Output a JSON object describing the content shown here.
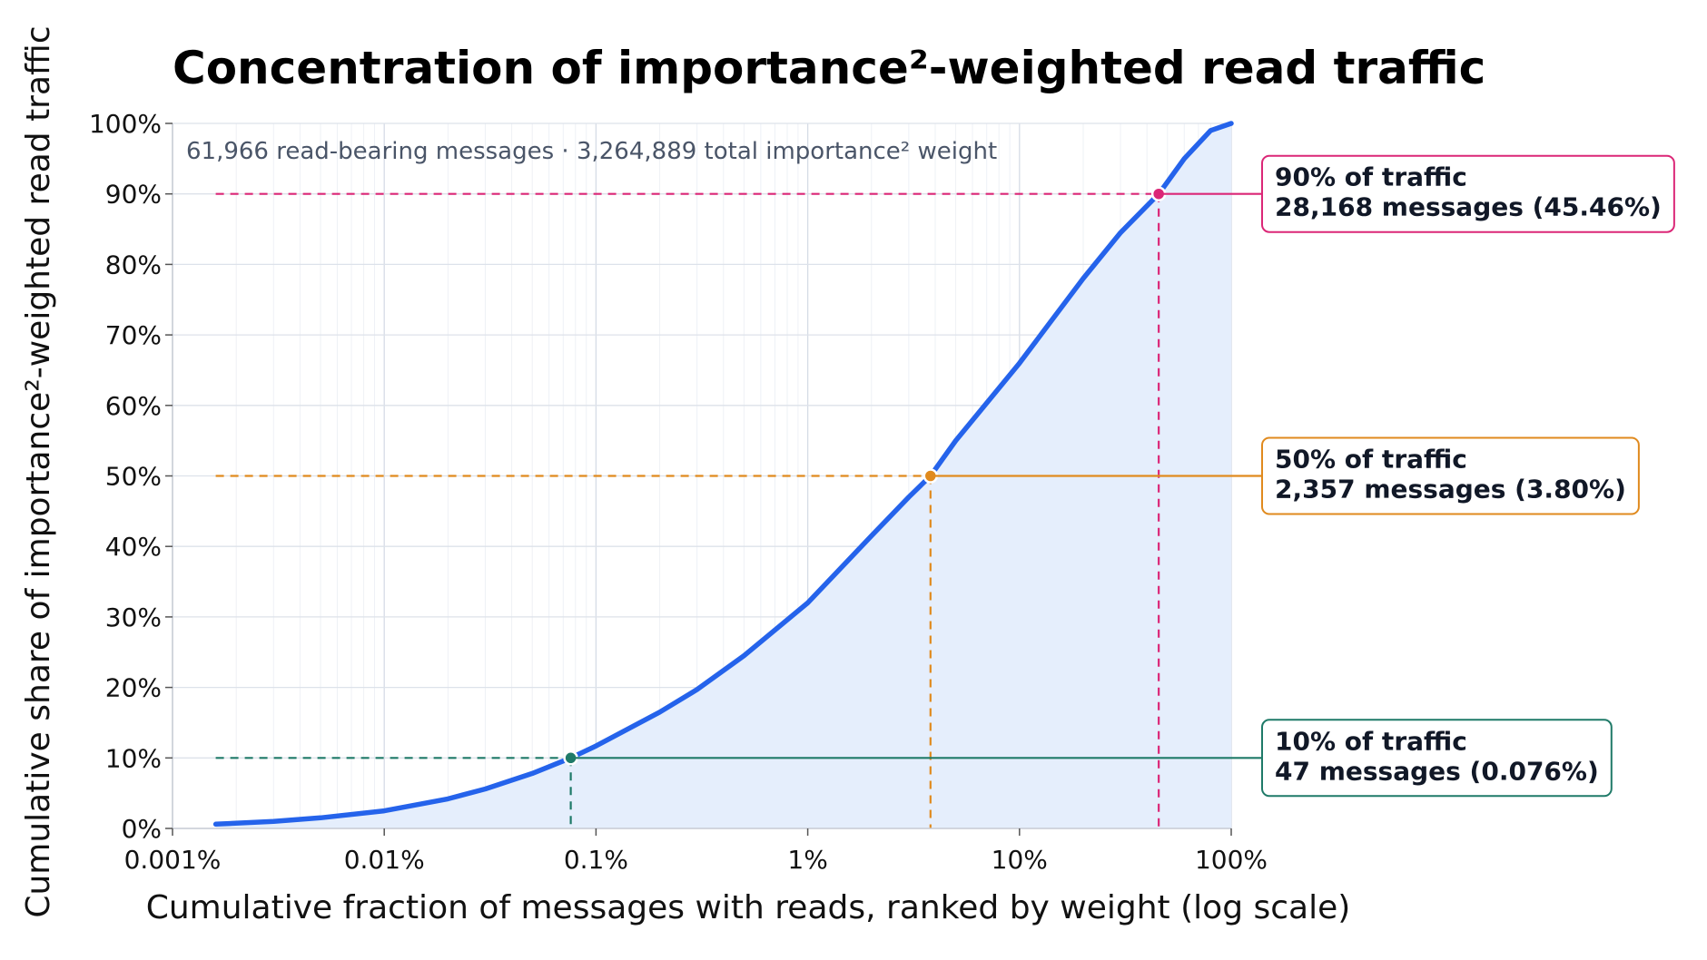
{
  "chart_data": {
    "type": "line",
    "title": "Concentration of importance²-weighted read traffic",
    "subtitle": "61,966 read-bearing messages · 3,264,889 total importance² weight",
    "xlabel": "Cumulative fraction of messages with reads, ranked by weight (log scale)",
    "ylabel": "Cumulative share of importance²-weighted read traffic",
    "x_scale": "log",
    "xlim": [
      0.001,
      100
    ],
    "ylim": [
      0,
      100
    ],
    "grid": true,
    "x_ticks": [
      {
        "value": 0.001,
        "label": "0.001%"
      },
      {
        "value": 0.01,
        "label": "0.01%"
      },
      {
        "value": 0.1,
        "label": "0.1%"
      },
      {
        "value": 1,
        "label": "1%"
      },
      {
        "value": 10,
        "label": "10%"
      },
      {
        "value": 100,
        "label": "100%"
      }
    ],
    "y_ticks": [
      {
        "value": 0,
        "label": "0%"
      },
      {
        "value": 10,
        "label": "10%"
      },
      {
        "value": 20,
        "label": "20%"
      },
      {
        "value": 30,
        "label": "30%"
      },
      {
        "value": 40,
        "label": "40%"
      },
      {
        "value": 50,
        "label": "50%"
      },
      {
        "value": 60,
        "label": "60%"
      },
      {
        "value": 70,
        "label": "70%"
      },
      {
        "value": 80,
        "label": "80%"
      },
      {
        "value": 90,
        "label": "90%"
      },
      {
        "value": 100,
        "label": "100%"
      }
    ],
    "series": [
      {
        "color": "#2563eb",
        "fill": "#e5eefc",
        "x": [
          0.0016,
          0.003,
          0.005,
          0.01,
          0.02,
          0.03,
          0.05,
          0.076,
          0.1,
          0.2,
          0.3,
          0.5,
          1,
          2,
          3,
          3.8,
          5,
          10,
          20,
          30,
          45.46,
          60,
          80,
          100
        ],
        "y": [
          0.6,
          1.0,
          1.5,
          2.5,
          4.2,
          5.6,
          7.8,
          10,
          11.7,
          16.5,
          19.7,
          24.5,
          32,
          41.5,
          47,
          50,
          55,
          66,
          78,
          84.5,
          90,
          95,
          99,
          100
        ]
      }
    ],
    "annotations": [
      {
        "threshold": 10,
        "x": 0.076,
        "color": "#1f7a68",
        "line1": "10% of traffic",
        "line2": "47 messages (0.076%)"
      },
      {
        "threshold": 50,
        "x": 3.8,
        "color": "#e08a1e",
        "line1": "50% of traffic",
        "line2": "2,357 messages (3.80%)"
      },
      {
        "threshold": 90,
        "x": 45.46,
        "color": "#db2777",
        "line1": "90% of traffic",
        "line2": "28,168 messages (45.46%)"
      }
    ]
  }
}
